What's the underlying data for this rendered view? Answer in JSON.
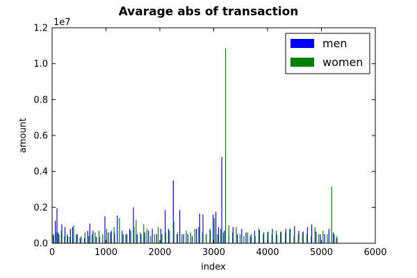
{
  "chart_data": {
    "type": "bar",
    "title": "Avarage abs of transaction",
    "xlabel": "index",
    "ylabel": "amount",
    "y_multiplier_label": "1e7",
    "xlim": [
      0,
      6000
    ],
    "ylim": [
      0,
      12000000
    ],
    "x_ticks": [
      {
        "value": 0,
        "label": "0"
      },
      {
        "value": 1000,
        "label": "1000"
      },
      {
        "value": 2000,
        "label": "2000"
      },
      {
        "value": 3000,
        "label": "3000"
      },
      {
        "value": 4000,
        "label": "4000"
      },
      {
        "value": 5000,
        "label": "5000"
      },
      {
        "value": 6000,
        "label": "6000"
      }
    ],
    "y_ticks": [
      {
        "value": 0,
        "label": "0.0"
      },
      {
        "value": 2000000,
        "label": "0.2"
      },
      {
        "value": 4000000,
        "label": "0.4"
      },
      {
        "value": 6000000,
        "label": "0.6"
      },
      {
        "value": 8000000,
        "label": "0.8"
      },
      {
        "value": 10000000,
        "label": "1.0"
      },
      {
        "value": 12000000,
        "label": "1.2"
      }
    ],
    "grid": false,
    "legend_position": "top-right",
    "series": [
      {
        "name": "men",
        "color": "#0000ff",
        "x": [
          20,
          60,
          90,
          110,
          180,
          240,
          290,
          340,
          380,
          450,
          520,
          600,
          660,
          700,
          760,
          820,
          880,
          980,
          1040,
          1100,
          1160,
          1210,
          1300,
          1370,
          1440,
          1510,
          1580,
          1650,
          1720,
          1790,
          1860,
          1940,
          2020,
          2100,
          2160,
          2250,
          2320,
          2370,
          2440,
          2520,
          2600,
          2680,
          2740,
          2800,
          2860,
          2930,
          2990,
          3040,
          3090,
          3150,
          3200,
          3280,
          3360,
          3440,
          3520,
          3600,
          3680,
          3760,
          3840,
          3930,
          4010,
          4090,
          4170,
          4250,
          4340,
          4420,
          4500,
          4580,
          4660,
          4740,
          4820,
          4900,
          4980,
          5060,
          5140,
          5220,
          5280
        ],
        "values": [
          500000,
          1250000,
          1950000,
          600000,
          1050000,
          900000,
          400000,
          800000,
          900000,
          500000,
          300000,
          300000,
          700000,
          1100000,
          700000,
          350000,
          350000,
          1500000,
          600000,
          700000,
          550000,
          1550000,
          700000,
          500000,
          800000,
          2000000,
          500000,
          500000,
          600000,
          700000,
          800000,
          500000,
          800000,
          1850000,
          800000,
          3500000,
          500000,
          1850000,
          500000,
          500000,
          400000,
          800000,
          1650000,
          1600000,
          500000,
          800000,
          1600000,
          1750000,
          900000,
          4800000,
          700000,
          400000,
          900000,
          500000,
          800000,
          600000,
          400000,
          700000,
          800000,
          600000,
          650000,
          800000,
          500000,
          650000,
          800000,
          800000,
          950000,
          700000,
          650000,
          900000,
          1050000,
          650000,
          500000,
          500000,
          800000,
          600000,
          300000
        ]
      },
      {
        "name": "women",
        "color": "#008000",
        "x": [
          30,
          80,
          130,
          170,
          230,
          280,
          330,
          400,
          470,
          540,
          610,
          680,
          740,
          800,
          870,
          940,
          1010,
          1080,
          1150,
          1250,
          1320,
          1390,
          1460,
          1520,
          1560,
          1640,
          1700,
          1760,
          1830,
          1900,
          1970,
          2040,
          2110,
          2180,
          2260,
          2330,
          2410,
          2490,
          2570,
          2650,
          2720,
          2790,
          2860,
          2940,
          3010,
          3070,
          3130,
          3180,
          3220,
          3280,
          3350,
          3420,
          3490,
          3560,
          3630,
          3700,
          3770,
          3850,
          3920,
          4000,
          4080,
          4160,
          4240,
          4330,
          4410,
          4490,
          4570,
          4650,
          4730,
          4810,
          4880,
          4950,
          5030,
          5110,
          5190,
          5240,
          5290
        ],
        "values": [
          400000,
          600000,
          500000,
          700000,
          400000,
          500000,
          350000,
          1000000,
          500000,
          400000,
          600000,
          400000,
          500000,
          600000,
          700000,
          500000,
          800000,
          600000,
          900000,
          1400000,
          500000,
          500000,
          700000,
          900000,
          1300000,
          600000,
          1050000,
          800000,
          400000,
          500000,
          900000,
          500000,
          600000,
          700000,
          1200000,
          600000,
          500000,
          700000,
          600000,
          800000,
          900000,
          600000,
          400000,
          700000,
          1400000,
          500000,
          800000,
          600000,
          10850000,
          1000000,
          600000,
          900000,
          500000,
          400000,
          600000,
          500000,
          400000,
          700000,
          500000,
          600000,
          500000,
          700000,
          600000,
          600000,
          800000,
          400000,
          500000,
          600000,
          500000,
          400000,
          900000,
          500000,
          700000,
          500000,
          3150000,
          500000,
          400000
        ]
      }
    ]
  }
}
